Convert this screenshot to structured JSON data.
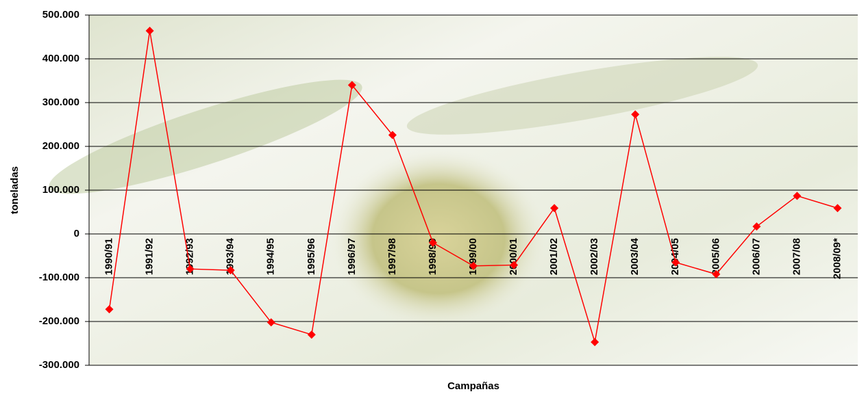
{
  "chart_data": {
    "type": "line",
    "x_label": "Campañas",
    "y_label": "toneladas",
    "categories": [
      "1990/91",
      "1991/92",
      "1992/93",
      "1993/94",
      "1994/95",
      "1995/96",
      "1996/97",
      "1997/98",
      "1998/99",
      "1999/00",
      "2000/01",
      "2001/02",
      "2002/03",
      "2003/04",
      "2004/05",
      "2005/06",
      "2006/07",
      "2007/08",
      "2008/09*"
    ],
    "series": [
      {
        "name": "toneladas",
        "color": "#ff0000",
        "values": [
          -172000,
          464000,
          -80000,
          -83000,
          -202000,
          -230000,
          340000,
          226000,
          -20000,
          -73000,
          -71000,
          59000,
          -247000,
          273000,
          -65000,
          -92000,
          17000,
          87000,
          59000
        ]
      }
    ],
    "ylim": [
      -300000,
      500000
    ],
    "yticks": [
      {
        "value": -300000,
        "label": "-300.000"
      },
      {
        "value": -200000,
        "label": "-200.000"
      },
      {
        "value": -100000,
        "label": "-100.000"
      },
      0,
      {
        "value": 100000,
        "label": "100.000"
      },
      {
        "value": 200000,
        "label": "200.000"
      },
      {
        "value": 300000,
        "label": "300.000"
      },
      {
        "value": 400000,
        "label": "400.000"
      },
      {
        "value": 500000,
        "label": "500.000"
      }
    ],
    "grid": true
  }
}
